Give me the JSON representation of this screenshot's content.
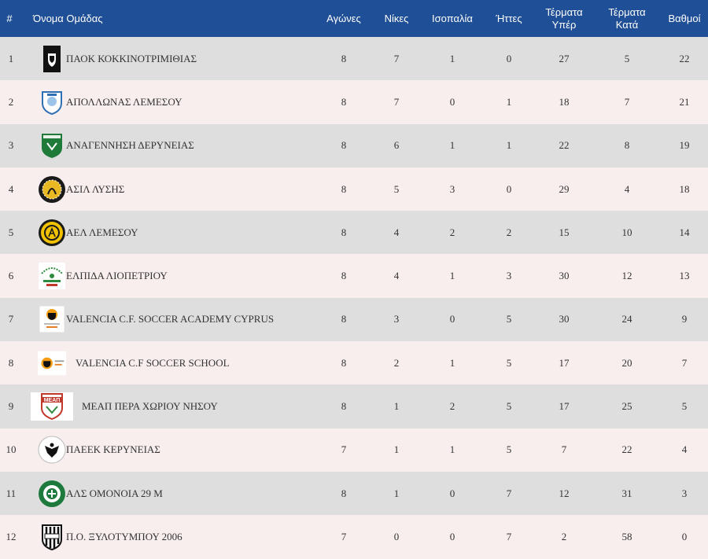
{
  "header": {
    "rank": "#",
    "team": "Όνομα Ομάδας",
    "played": "Αγώνες",
    "wins": "Νίκες",
    "draws": "Ισοπαλία",
    "losses": "Ήττες",
    "gf_line1": "Τέρματα",
    "gf_line2": "Υπέρ",
    "ga_line1": "Τέρματα",
    "ga_line2": "Κατά",
    "points": "Βαθμοί"
  },
  "colors": {
    "header_bg": "#1f4f96",
    "row_odd": "#dedede",
    "row_even": "#f8eeee"
  },
  "rows": [
    {
      "rank": "1",
      "team": "ΠΑΟΚ ΚΟΚΚΙΝΟΤΡΙΜΙΘΙΑΣ",
      "logo": "paok-crest-icon",
      "played": "8",
      "wins": "7",
      "draws": "1",
      "losses": "0",
      "gf": "27",
      "ga": "5",
      "points": "22"
    },
    {
      "rank": "2",
      "team": "ΑΠΟΛΛΩΝΑΣ ΛΕΜΕΣΟΥ",
      "logo": "apollon-crest-icon",
      "played": "8",
      "wins": "7",
      "draws": "0",
      "losses": "1",
      "gf": "18",
      "ga": "7",
      "points": "21"
    },
    {
      "rank": "3",
      "team": "ΑΝΑΓΕΝΝΗΣΗ ΔΕΡΥΝΕΙΑΣ",
      "logo": "anagennisi-crest-icon",
      "played": "8",
      "wins": "6",
      "draws": "1",
      "losses": "1",
      "gf": "22",
      "ga": "8",
      "points": "19"
    },
    {
      "rank": "4",
      "team": "ΑΣΙΛ ΛΥΣΗΣ",
      "logo": "asil-crest-icon",
      "played": "8",
      "wins": "5",
      "draws": "3",
      "losses": "0",
      "gf": "29",
      "ga": "4",
      "points": "18"
    },
    {
      "rank": "5",
      "team": "ΑΕΛ ΛΕΜΕΣΟΥ",
      "logo": "ael-crest-icon",
      "played": "8",
      "wins": "4",
      "draws": "2",
      "losses": "2",
      "gf": "15",
      "ga": "10",
      "points": "14"
    },
    {
      "rank": "6",
      "team": "ΕΛΠΙΔΑ ΛΙΟΠΕΤΡΙΟΥ",
      "logo": "elpida-crest-icon",
      "played": "8",
      "wins": "4",
      "draws": "1",
      "losses": "3",
      "gf": "30",
      "ga": "12",
      "points": "13"
    },
    {
      "rank": "7",
      "team": "VALENCIA C.F. SOCCER ACADEMY CYPRUS",
      "logo": "valencia-academy-crest-icon",
      "played": "8",
      "wins": "3",
      "draws": "0",
      "losses": "5",
      "gf": "30",
      "ga": "24",
      "points": "9"
    },
    {
      "rank": "8",
      "team": "VALENCIA C.F SOCCER SCHOOL",
      "logo": "valencia-school-crest-icon",
      "played": "8",
      "wins": "2",
      "draws": "1",
      "losses": "5",
      "gf": "17",
      "ga": "20",
      "points": "7"
    },
    {
      "rank": "9",
      "team": "ΜΕΑΠ ΠΕΡΑ ΧΩΡΙΟΥ ΝΗΣΟΥ",
      "logo": "meap-crest-icon",
      "logo_text": "ΜΕΑΠ",
      "played": "8",
      "wins": "1",
      "draws": "2",
      "losses": "5",
      "gf": "17",
      "ga": "25",
      "points": "5"
    },
    {
      "rank": "10",
      "team": "ΠΑΕΕΚ ΚΕΡΥΝΕΙΑΣ",
      "logo": "paeek-crest-icon",
      "played": "7",
      "wins": "1",
      "draws": "1",
      "losses": "5",
      "gf": "7",
      "ga": "22",
      "points": "4"
    },
    {
      "rank": "11",
      "team": "ΑΛΣ ΟΜΟΝΟΙΑ 29 Μ",
      "logo": "omonoia-crest-icon",
      "played": "8",
      "wins": "1",
      "draws": "0",
      "losses": "7",
      "gf": "12",
      "ga": "31",
      "points": "3"
    },
    {
      "rank": "12",
      "team": "Π.Ο. ΞΥΛΟΤΥΜΠΟΥ 2006",
      "logo": "xylotymbou-crest-icon",
      "played": "7",
      "wins": "0",
      "draws": "0",
      "losses": "7",
      "gf": "2",
      "ga": "58",
      "points": "0"
    }
  ]
}
